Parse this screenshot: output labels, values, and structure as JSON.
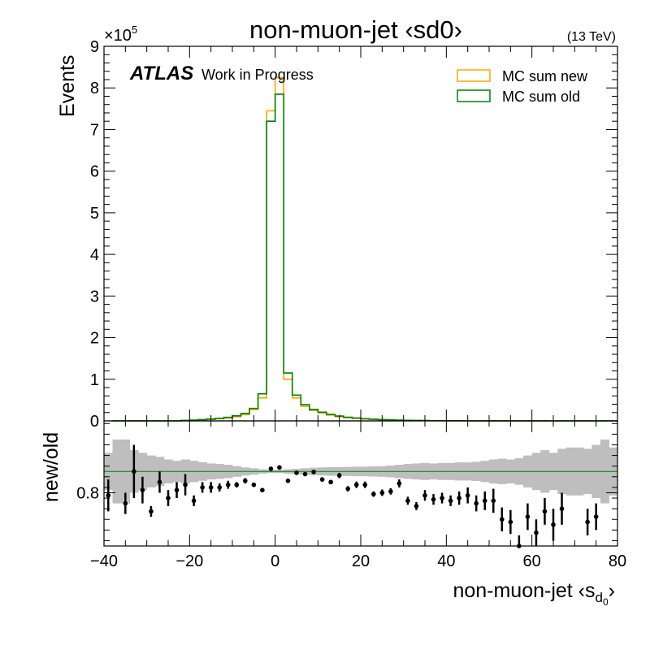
{
  "chart_data": [
    {
      "type": "line",
      "title": "non-muon-jet ‹sd0›",
      "energy_label": "(13 TeV)",
      "experiment": "ATLAS",
      "experiment_status": "Work in Progress",
      "ylabel": "Events",
      "y_multiplier": "×10",
      "y_multiplier_exp": "5",
      "xlim": [
        -40,
        80
      ],
      "ylim": [
        0,
        900000
      ],
      "y_ticks": [
        0,
        1,
        2,
        3,
        4,
        5,
        6,
        7,
        8,
        9
      ],
      "legend_position": "top-right",
      "series": [
        {
          "name": "MC sum new",
          "color": "#ffa500",
          "style": "step",
          "bin_edges": [
            -38,
            -36,
            -34,
            -32,
            -30,
            -28,
            -26,
            -24,
            -22,
            -20,
            -18,
            -16,
            -14,
            -12,
            -10,
            -8,
            -6,
            -4,
            -2,
            0,
            2,
            4,
            6,
            8,
            10,
            12,
            14,
            16,
            18,
            20,
            22,
            24,
            26,
            28,
            30,
            32,
            34,
            36,
            38,
            40,
            42,
            44,
            46,
            48,
            50,
            52,
            54,
            56,
            58,
            60,
            62,
            64,
            66,
            68,
            70,
            72,
            74,
            76,
            78
          ],
          "values": [
            0,
            0,
            0,
            0,
            0,
            0,
            0,
            0,
            1000,
            1500,
            2500,
            3500,
            5000,
            7000,
            10000,
            15000,
            27000,
            55000,
            745000,
            825000,
            100000,
            55000,
            35000,
            25000,
            19000,
            14000,
            10000,
            7500,
            6000,
            4500,
            3500,
            2700,
            2000,
            1500,
            1200,
            900,
            700,
            500,
            400,
            300,
            250,
            200,
            150,
            120,
            100,
            80,
            60,
            50,
            40,
            30,
            25,
            20,
            15,
            10,
            8,
            6,
            5,
            4
          ]
        },
        {
          "name": "MC sum old",
          "color": "#008000",
          "style": "step",
          "bin_edges": [
            -38,
            -36,
            -34,
            -32,
            -30,
            -28,
            -26,
            -24,
            -22,
            -20,
            -18,
            -16,
            -14,
            -12,
            -10,
            -8,
            -6,
            -4,
            -2,
            0,
            2,
            4,
            6,
            8,
            10,
            12,
            14,
            16,
            18,
            20,
            22,
            24,
            26,
            28,
            30,
            32,
            34,
            36,
            38,
            40,
            42,
            44,
            46,
            48,
            50,
            52,
            54,
            56,
            58,
            60,
            62,
            64,
            66,
            68,
            70,
            72,
            74,
            76,
            78
          ],
          "values": [
            0,
            0,
            0,
            0,
            0,
            0,
            0,
            0,
            1200,
            1800,
            3000,
            4200,
            6000,
            8500,
            12000,
            18000,
            30000,
            65000,
            720000,
            785000,
            115000,
            62000,
            39000,
            27500,
            21000,
            15500,
            11500,
            8600,
            6900,
            5200,
            4100,
            3100,
            2400,
            1800,
            1400,
            1050,
            800,
            600,
            470,
            360,
            290,
            230,
            180,
            140,
            115,
            92,
            72,
            58,
            46,
            36,
            29,
            23,
            18,
            12,
            9,
            7,
            6,
            5
          ]
        }
      ]
    },
    {
      "type": "scatter",
      "ylabel": "new/old",
      "xlabel": "non-muon-jet ‹s",
      "xlabel_sub": "d",
      "xlabel_subsub": "0",
      "xlabel_end": "›",
      "xlim": [
        -40,
        80
      ],
      "ylim": [
        0.6,
        1.07
      ],
      "y_tick_labels": [
        {
          "value": 0.8,
          "text": "0.8"
        }
      ],
      "x_ticks": [
        -40,
        -20,
        0,
        20,
        40,
        60,
        80
      ],
      "x_tick_labels": [
        "−40",
        "−20",
        "0",
        "20",
        "40",
        "60",
        "80"
      ],
      "reference_line": {
        "y": 0.88,
        "color": "#008000"
      },
      "uncertainty_band": {
        "color": "#bebebe",
        "x_edges": [
          -40,
          -38,
          -36,
          -34,
          -32,
          -30,
          -28,
          -26,
          -24,
          -22,
          -20,
          -18,
          -16,
          -14,
          -12,
          -10,
          -8,
          -6,
          -4,
          -2,
          0,
          2,
          4,
          6,
          8,
          10,
          12,
          14,
          16,
          18,
          20,
          22,
          24,
          26,
          28,
          30,
          32,
          34,
          36,
          38,
          40,
          42,
          44,
          46,
          48,
          50,
          52,
          54,
          56,
          58,
          60,
          62,
          64,
          66,
          68,
          70,
          72,
          74,
          76,
          78,
          80
        ],
        "half_width": [
          0.07,
          0.12,
          0.12,
          0.08,
          0.07,
          0.06,
          0.055,
          0.045,
          0.04,
          0.045,
          0.04,
          0.035,
          0.03,
          0.028,
          0.025,
          0.02,
          0.015,
          0.012,
          0.008,
          0.006,
          0.006,
          0.008,
          0.01,
          0.012,
          0.014,
          0.015,
          0.016,
          0.016,
          0.017,
          0.018,
          0.018,
          0.019,
          0.02,
          0.022,
          0.025,
          0.028,
          0.03,
          0.032,
          0.03,
          0.032,
          0.032,
          0.034,
          0.034,
          0.036,
          0.04,
          0.045,
          0.048,
          0.045,
          0.05,
          0.06,
          0.07,
          0.08,
          0.07,
          0.085,
          0.09,
          0.09,
          0.085,
          0.1,
          0.12,
          0.09
        ]
      },
      "points": [
        {
          "x": -39,
          "y": 0.79,
          "err": 0.06
        },
        {
          "x": -35,
          "y": 0.76,
          "err": 0.04
        },
        {
          "x": -33,
          "y": 0.88,
          "err": 0.1
        },
        {
          "x": -31,
          "y": 0.81,
          "err": 0.05
        },
        {
          "x": -29,
          "y": 0.73,
          "err": 0.02
        },
        {
          "x": -27,
          "y": 0.84,
          "err": 0.04
        },
        {
          "x": -25,
          "y": 0.78,
          "err": 0.03
        },
        {
          "x": -23,
          "y": 0.81,
          "err": 0.03
        },
        {
          "x": -21,
          "y": 0.83,
          "err": 0.04
        },
        {
          "x": -19,
          "y": 0.77,
          "err": 0.02
        },
        {
          "x": -17,
          "y": 0.82,
          "err": 0.02
        },
        {
          "x": -15,
          "y": 0.82,
          "err": 0.02
        },
        {
          "x": -13,
          "y": 0.82,
          "err": 0.015
        },
        {
          "x": -11,
          "y": 0.83,
          "err": 0.015
        },
        {
          "x": -9,
          "y": 0.83,
          "err": 0.01
        },
        {
          "x": -7,
          "y": 0.845,
          "err": 0.01
        },
        {
          "x": -5,
          "y": 0.83,
          "err": 0.006
        },
        {
          "x": -3,
          "y": 0.81,
          "err": 0.004
        },
        {
          "x": -1,
          "y": 0.89,
          "err": 0.002
        },
        {
          "x": 1,
          "y": 0.895,
          "err": 0.002
        },
        {
          "x": 3,
          "y": 0.845,
          "err": 0.004
        },
        {
          "x": 5,
          "y": 0.875,
          "err": 0.005
        },
        {
          "x": 7,
          "y": 0.87,
          "err": 0.006
        },
        {
          "x": 9,
          "y": 0.878,
          "err": 0.007
        },
        {
          "x": 11,
          "y": 0.85,
          "err": 0.008
        },
        {
          "x": 13,
          "y": 0.84,
          "err": 0.008
        },
        {
          "x": 15,
          "y": 0.865,
          "err": 0.01
        },
        {
          "x": 17,
          "y": 0.815,
          "err": 0.01
        },
        {
          "x": 19,
          "y": 0.83,
          "err": 0.012
        },
        {
          "x": 21,
          "y": 0.83,
          "err": 0.012
        },
        {
          "x": 23,
          "y": 0.795,
          "err": 0.01
        },
        {
          "x": 25,
          "y": 0.8,
          "err": 0.012
        },
        {
          "x": 27,
          "y": 0.805,
          "err": 0.012
        },
        {
          "x": 29,
          "y": 0.835,
          "err": 0.015
        },
        {
          "x": 31,
          "y": 0.77,
          "err": 0.015
        },
        {
          "x": 33,
          "y": 0.75,
          "err": 0.015
        },
        {
          "x": 35,
          "y": 0.79,
          "err": 0.02
        },
        {
          "x": 37,
          "y": 0.775,
          "err": 0.02
        },
        {
          "x": 39,
          "y": 0.78,
          "err": 0.02
        },
        {
          "x": 41,
          "y": 0.77,
          "err": 0.02
        },
        {
          "x": 43,
          "y": 0.78,
          "err": 0.025
        },
        {
          "x": 45,
          "y": 0.79,
          "err": 0.03
        },
        {
          "x": 47,
          "y": 0.76,
          "err": 0.03
        },
        {
          "x": 49,
          "y": 0.77,
          "err": 0.035
        },
        {
          "x": 51,
          "y": 0.77,
          "err": 0.045
        },
        {
          "x": 53,
          "y": 0.7,
          "err": 0.045
        },
        {
          "x": 55,
          "y": 0.69,
          "err": 0.045
        },
        {
          "x": 57,
          "y": 0.6,
          "err": 0.04
        },
        {
          "x": 59,
          "y": 0.71,
          "err": 0.05
        },
        {
          "x": 61,
          "y": 0.65,
          "err": 0.05
        },
        {
          "x": 63,
          "y": 0.73,
          "err": 0.05
        },
        {
          "x": 65,
          "y": 0.68,
          "err": 0.06
        },
        {
          "x": 67,
          "y": 0.74,
          "err": 0.06
        },
        {
          "x": 73,
          "y": 0.69,
          "err": 0.05
        },
        {
          "x": 75,
          "y": 0.71,
          "err": 0.05
        }
      ]
    }
  ]
}
